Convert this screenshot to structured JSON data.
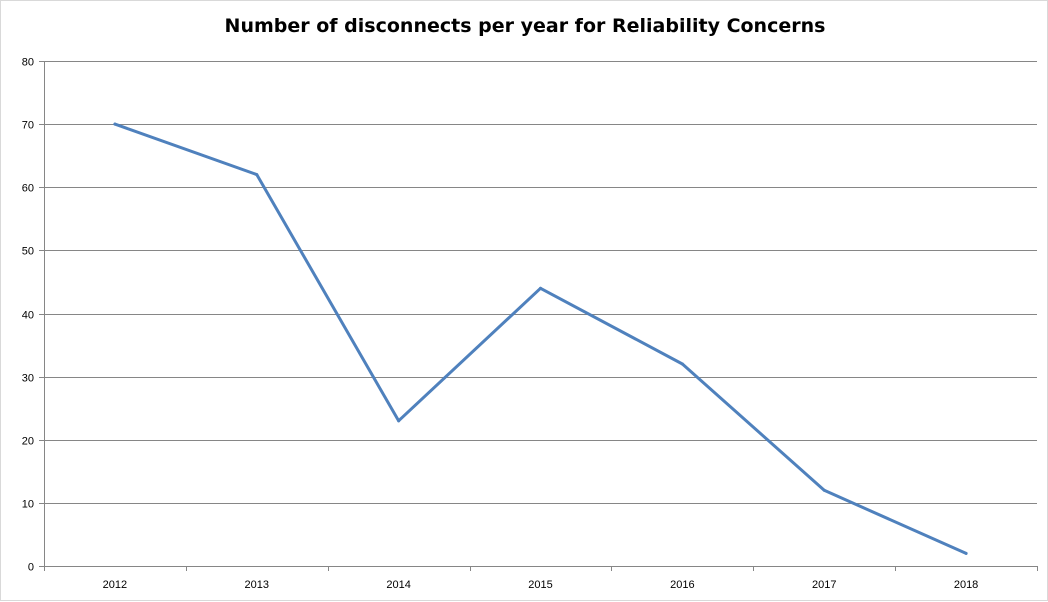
{
  "chart_data": {
    "type": "line",
    "title": "Number of disconnects per year for Reliability Concerns",
    "xlabel": "",
    "ylabel": "",
    "categories": [
      "2012",
      "2013",
      "2014",
      "2015",
      "2016",
      "2017",
      "2018"
    ],
    "series": [
      {
        "values": [
          70,
          62,
          23,
          44,
          32,
          12,
          2
        ],
        "color": "#4f81bd"
      }
    ],
    "ylim": [
      0,
      80
    ],
    "yticks": [
      0,
      10,
      20,
      30,
      40,
      50,
      60,
      70,
      80
    ],
    "grid": "horizontal",
    "legend": "none"
  }
}
